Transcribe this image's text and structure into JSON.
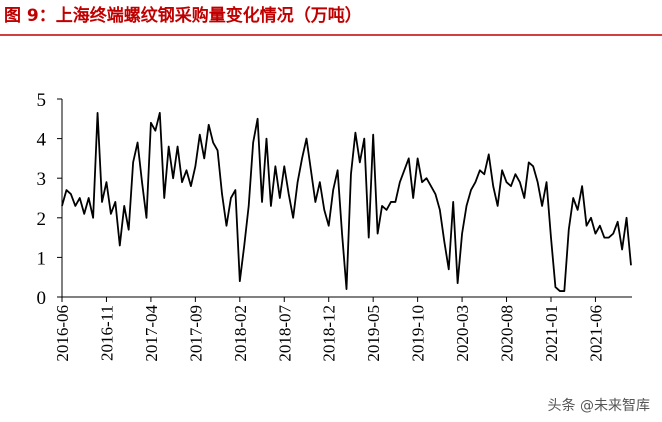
{
  "chart_data": {
    "type": "line",
    "title": "图 9：上海终端螺纹钢采购量变化情况（万吨）",
    "watermark": "头条 @未来智库",
    "color": "#000000",
    "categories": [
      "2016-06",
      null,
      null,
      null,
      null,
      null,
      null,
      null,
      null,
      null,
      "2016-11",
      null,
      null,
      null,
      null,
      null,
      null,
      null,
      null,
      null,
      "2017-04",
      null,
      null,
      null,
      null,
      null,
      null,
      null,
      null,
      null,
      "2017-09",
      null,
      null,
      null,
      null,
      null,
      null,
      null,
      null,
      null,
      "2018-02",
      null,
      null,
      null,
      null,
      null,
      null,
      null,
      null,
      null,
      "2018-07",
      null,
      null,
      null,
      null,
      null,
      null,
      null,
      null,
      null,
      "2018-12",
      null,
      null,
      null,
      null,
      null,
      null,
      null,
      null,
      null,
      "2019-05",
      null,
      null,
      null,
      null,
      null,
      null,
      null,
      null,
      null,
      "2019-10",
      null,
      null,
      null,
      null,
      null,
      null,
      null,
      null,
      null,
      "2020-03",
      null,
      null,
      null,
      null,
      null,
      null,
      null,
      null,
      null,
      "2020-08",
      null,
      null,
      null,
      null,
      null,
      null,
      null,
      null,
      null,
      "2021-01",
      null,
      null,
      null,
      null,
      null,
      null,
      null,
      null,
      null,
      "2021-06",
      null,
      null,
      null,
      null,
      null,
      null,
      null,
      null
    ],
    "values": [
      2.3,
      2.7,
      2.6,
      2.3,
      2.5,
      2.1,
      2.5,
      2.0,
      4.65,
      2.4,
      2.9,
      2.1,
      2.4,
      1.3,
      2.3,
      1.7,
      3.4,
      3.9,
      2.9,
      2.0,
      4.4,
      4.2,
      4.65,
      2.5,
      3.8,
      3.0,
      3.8,
      2.9,
      3.2,
      2.8,
      3.3,
      4.1,
      3.5,
      4.35,
      3.9,
      3.7,
      2.6,
      1.8,
      2.5,
      2.7,
      0.4,
      1.3,
      2.3,
      3.9,
      4.5,
      2.4,
      4.0,
      2.3,
      3.3,
      2.5,
      3.3,
      2.6,
      2.0,
      2.9,
      3.5,
      4.0,
      3.2,
      2.4,
      2.9,
      2.2,
      1.8,
      2.7,
      3.2,
      1.6,
      0.2,
      3.1,
      4.15,
      3.4,
      4.0,
      1.5,
      4.1,
      1.6,
      2.3,
      2.2,
      2.4,
      2.4,
      2.9,
      3.2,
      3.5,
      2.5,
      3.5,
      2.9,
      3.0,
      2.8,
      2.6,
      2.2,
      1.4,
      0.7,
      2.4,
      0.35,
      1.6,
      2.3,
      2.7,
      2.9,
      3.2,
      3.1,
      3.6,
      2.8,
      2.3,
      3.2,
      2.9,
      2.8,
      3.1,
      2.9,
      2.5,
      3.4,
      3.3,
      2.9,
      2.3,
      2.9,
      1.5,
      0.25,
      0.15,
      0.15,
      1.7,
      2.5,
      2.2,
      2.8,
      1.8,
      2.0,
      1.6,
      1.8,
      1.5,
      1.5,
      1.6,
      1.9,
      1.2,
      2.0,
      0.8
    ],
    "ylim": [
      0,
      5
    ],
    "yticks": [
      0,
      1,
      2,
      3,
      4,
      5
    ]
  }
}
